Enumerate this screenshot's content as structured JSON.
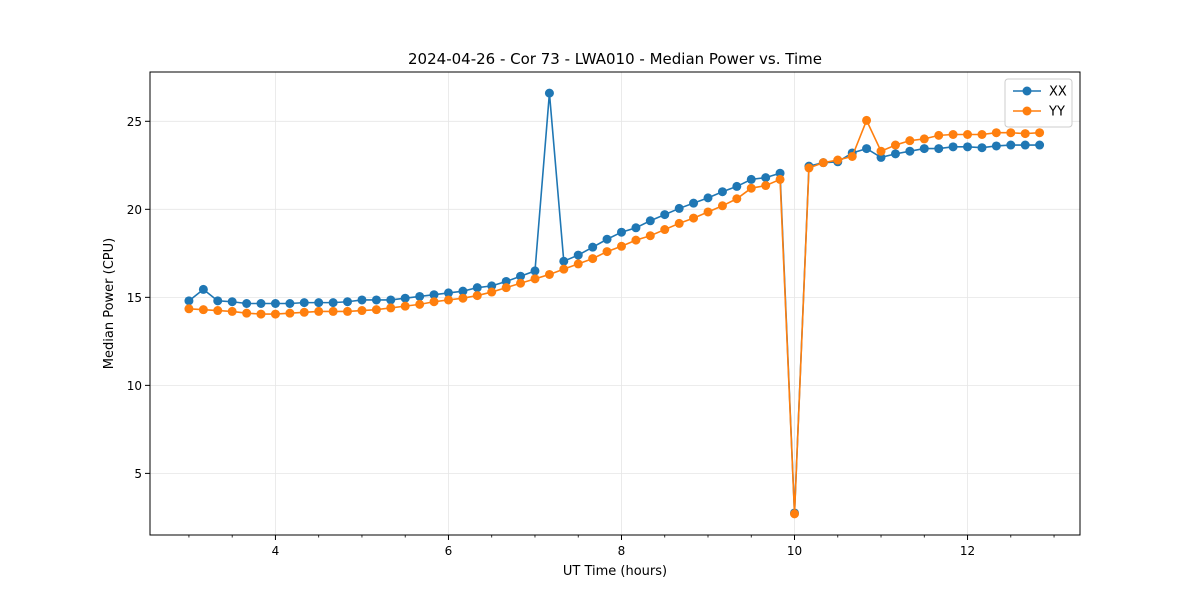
{
  "chart_data": {
    "type": "line",
    "title": "2024-04-26 - Cor 73 - LWA010 - Median Power vs. Time",
    "xlabel": "UT Time (hours)",
    "ylabel": "Median Power (CPU)",
    "xlim": [
      2.55,
      13.3
    ],
    "ylim": [
      1.5,
      27.8
    ],
    "xticks": [
      4,
      6,
      8,
      10,
      12
    ],
    "yticks": [
      5,
      10,
      15,
      20,
      25
    ],
    "grid": true,
    "legend_position": "top-right",
    "x": [
      3.0,
      3.167,
      3.333,
      3.5,
      3.667,
      3.833,
      4.0,
      4.167,
      4.333,
      4.5,
      4.667,
      4.833,
      5.0,
      5.167,
      5.333,
      5.5,
      5.667,
      5.833,
      6.0,
      6.167,
      6.333,
      6.5,
      6.667,
      6.833,
      7.0,
      7.167,
      7.333,
      7.5,
      7.667,
      7.833,
      8.0,
      8.167,
      8.333,
      8.5,
      8.667,
      8.833,
      9.0,
      9.167,
      9.333,
      9.5,
      9.667,
      9.833,
      10.0,
      10.167,
      10.333,
      10.5,
      10.667,
      10.833,
      11.0,
      11.167,
      11.333,
      11.5,
      11.667,
      11.833,
      12.0,
      12.167,
      12.333,
      12.5,
      12.667,
      12.833
    ],
    "series": [
      {
        "name": "XX",
        "color": "#1f77b4",
        "values": [
          14.8,
          15.45,
          14.8,
          14.75,
          14.65,
          14.65,
          14.65,
          14.65,
          14.7,
          14.7,
          14.7,
          14.75,
          14.85,
          14.85,
          14.85,
          14.95,
          15.05,
          15.15,
          15.25,
          15.35,
          15.55,
          15.65,
          15.9,
          16.2,
          16.5,
          26.6,
          17.05,
          17.4,
          17.85,
          18.3,
          18.7,
          18.95,
          19.35,
          19.7,
          20.05,
          20.35,
          20.65,
          21.0,
          21.3,
          21.7,
          21.8,
          22.05,
          2.75,
          22.45,
          22.65,
          22.7,
          23.2,
          23.45,
          22.95,
          23.15,
          23.3,
          23.45,
          23.45,
          23.55,
          23.55,
          23.5,
          23.6,
          23.65,
          23.65,
          23.65
        ]
      },
      {
        "name": "YY",
        "color": "#ff7f0e",
        "values": [
          14.35,
          14.3,
          14.25,
          14.2,
          14.1,
          14.05,
          14.05,
          14.1,
          14.15,
          14.2,
          14.2,
          14.2,
          14.25,
          14.3,
          14.4,
          14.5,
          14.6,
          14.75,
          14.85,
          14.95,
          15.1,
          15.3,
          15.55,
          15.8,
          16.05,
          16.3,
          16.6,
          16.9,
          17.2,
          17.6,
          17.9,
          18.25,
          18.5,
          18.85,
          19.2,
          19.5,
          19.85,
          20.2,
          20.6,
          21.2,
          21.35,
          21.7,
          2.7,
          22.35,
          22.65,
          22.8,
          23.0,
          25.05,
          23.3,
          23.65,
          23.9,
          24.0,
          24.2,
          24.25,
          24.25,
          24.25,
          24.35,
          24.35,
          24.3,
          24.35
        ]
      }
    ]
  }
}
